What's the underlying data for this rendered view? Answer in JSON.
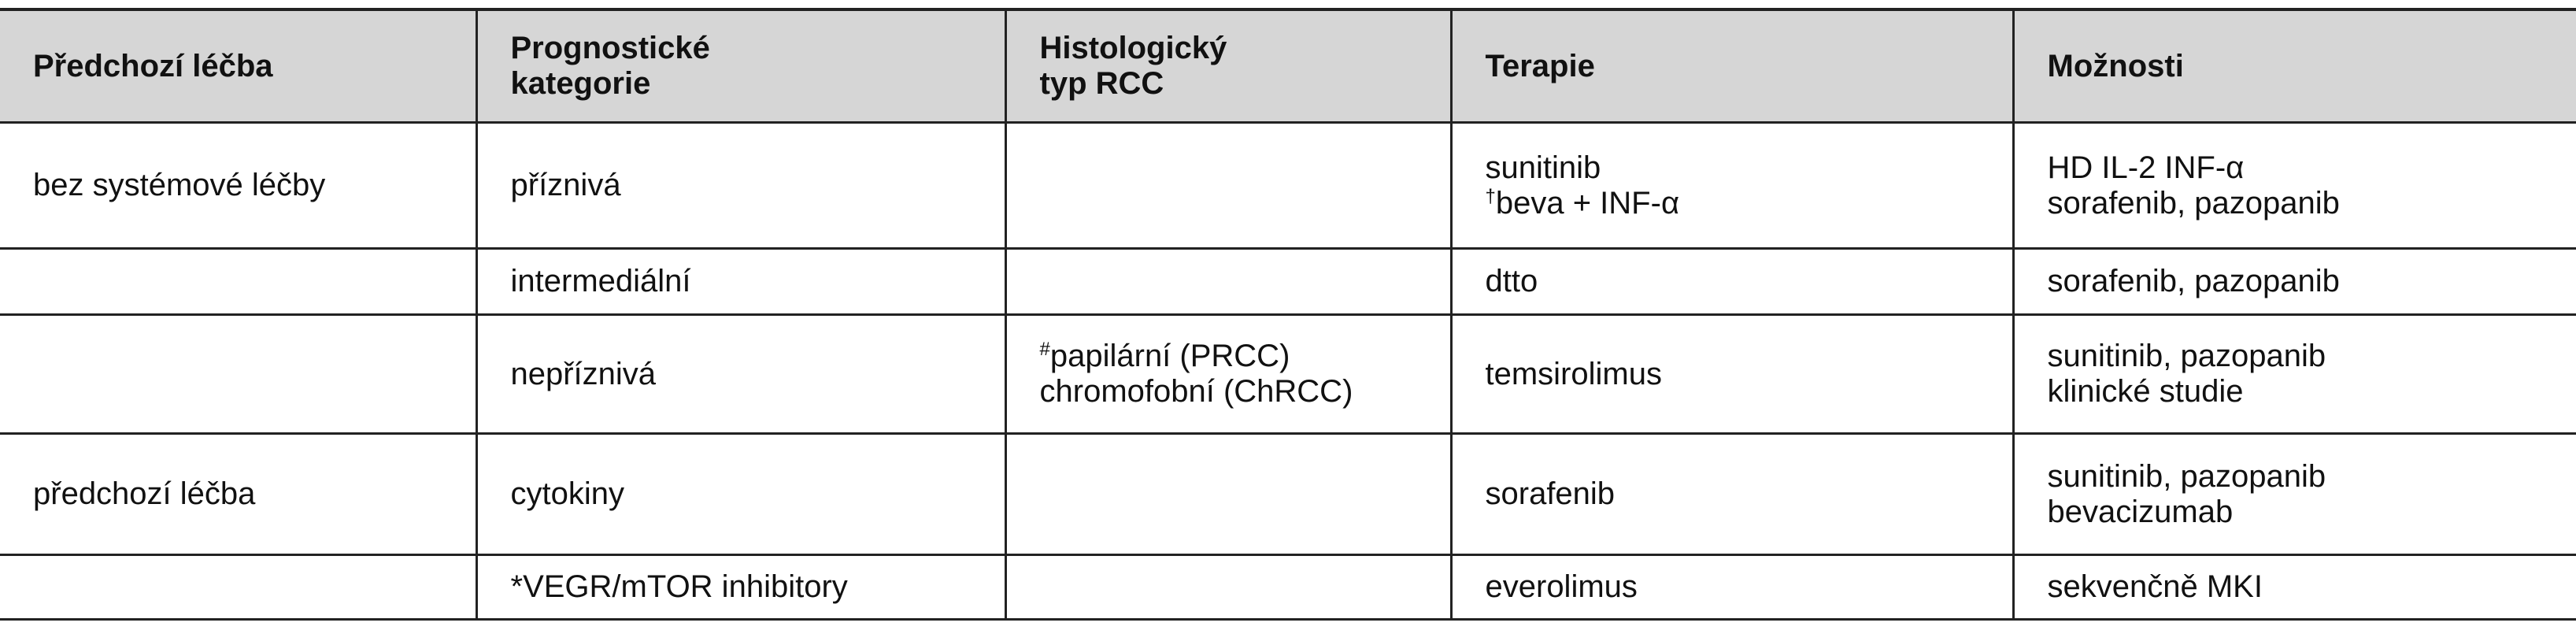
{
  "table": {
    "header": [
      [
        "Předchozí léčba"
      ],
      [
        "Prognostické",
        "kategorie"
      ],
      [
        "Histologický",
        "typ RCC"
      ],
      [
        "Terapie"
      ],
      [
        "Možnosti"
      ]
    ],
    "rows": [
      [
        [
          "bez systémové léčby"
        ],
        [
          "příznivá"
        ],
        null,
        [
          "sunitinib",
          {
            "sup": "†",
            "text": "beva + INF-α"
          }
        ],
        [
          "HD IL-2 INF-α",
          "sorafenib, pazopanib"
        ]
      ],
      [
        null,
        [
          "intermediální"
        ],
        null,
        [
          "dtto"
        ],
        [
          "sorafenib, pazopanib"
        ]
      ],
      [
        null,
        [
          "nepříznivá"
        ],
        [
          {
            "sup": "#",
            "text": "papilární (PRCC)"
          },
          "chromofobní (ChRCC)"
        ],
        [
          "temsirolimus"
        ],
        [
          "sunitinib, pazopanib",
          "klinické studie"
        ]
      ],
      [
        [
          "předchozí léčba"
        ],
        [
          "cytokiny"
        ],
        null,
        [
          "sorafenib"
        ],
        [
          "sunitinib, pazopanib",
          "bevacizumab"
        ]
      ],
      [
        null,
        [
          "*VEGR/mTOR inhibitory"
        ],
        null,
        [
          "everolimus"
        ],
        [
          "sekvenčně MKI"
        ]
      ]
    ]
  }
}
